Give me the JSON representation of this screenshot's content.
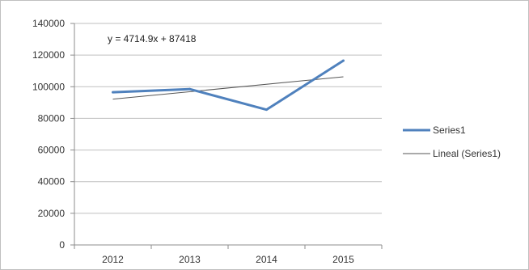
{
  "chart_data": {
    "type": "line",
    "categories": [
      "2012",
      "2013",
      "2014",
      "2015"
    ],
    "series": [
      {
        "name": "Series1",
        "values": [
          96500,
          98500,
          85500,
          116500
        ],
        "color": "#4f81bd"
      }
    ],
    "trendline": {
      "name": "Lineal (Series1)",
      "slope": 4714.9,
      "intercept": 87418,
      "equation": "y = 4714.9x + 87418",
      "color": "#555555"
    },
    "ylim": [
      0,
      140000
    ],
    "yticks": [
      "0",
      "20000",
      "40000",
      "60000",
      "80000",
      "100000",
      "120000",
      "140000"
    ],
    "grid": true,
    "legend": "right",
    "title": "",
    "xlabel": "",
    "ylabel": ""
  }
}
